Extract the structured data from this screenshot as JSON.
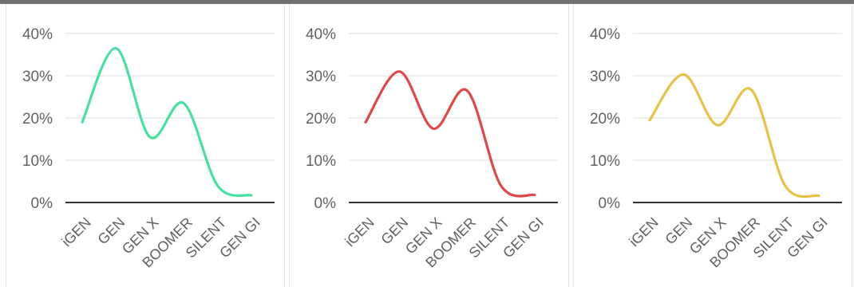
{
  "chart_data": [
    {
      "type": "line",
      "categories": [
        "iGEN",
        "GEN",
        "GEN X",
        "BOOMER",
        "SILENT",
        "GEN GI"
      ],
      "y_ticks": [
        "0%",
        "10%",
        "20%",
        "30%",
        "40%"
      ],
      "ylim": [
        0,
        40
      ],
      "grid": true,
      "series": [
        {
          "color": "#48e0a0",
          "values": [
            19,
            36.5,
            15.5,
            23.5,
            4,
            1.7
          ]
        }
      ]
    },
    {
      "type": "line",
      "categories": [
        "iGEN",
        "GEN",
        "GEN X",
        "BOOMER",
        "SILENT",
        "GEN GI"
      ],
      "y_ticks": [
        "0%",
        "10%",
        "20%",
        "30%",
        "40%"
      ],
      "ylim": [
        0,
        40
      ],
      "grid": true,
      "series": [
        {
          "color": "#e04848",
          "values": [
            19,
            31,
            17.5,
            26.5,
            4,
            1.8
          ]
        }
      ]
    },
    {
      "type": "line",
      "categories": [
        "iGEN",
        "GEN",
        "GEN X",
        "BOOMER",
        "SILENT",
        "GEN GI"
      ],
      "y_ticks": [
        "0%",
        "10%",
        "20%",
        "30%",
        "40%"
      ],
      "ylim": [
        0,
        40
      ],
      "grid": true,
      "series": [
        {
          "color": "#e6c246",
          "values": [
            19.5,
            30.3,
            18.3,
            26.7,
            4,
            1.6
          ]
        }
      ]
    }
  ]
}
